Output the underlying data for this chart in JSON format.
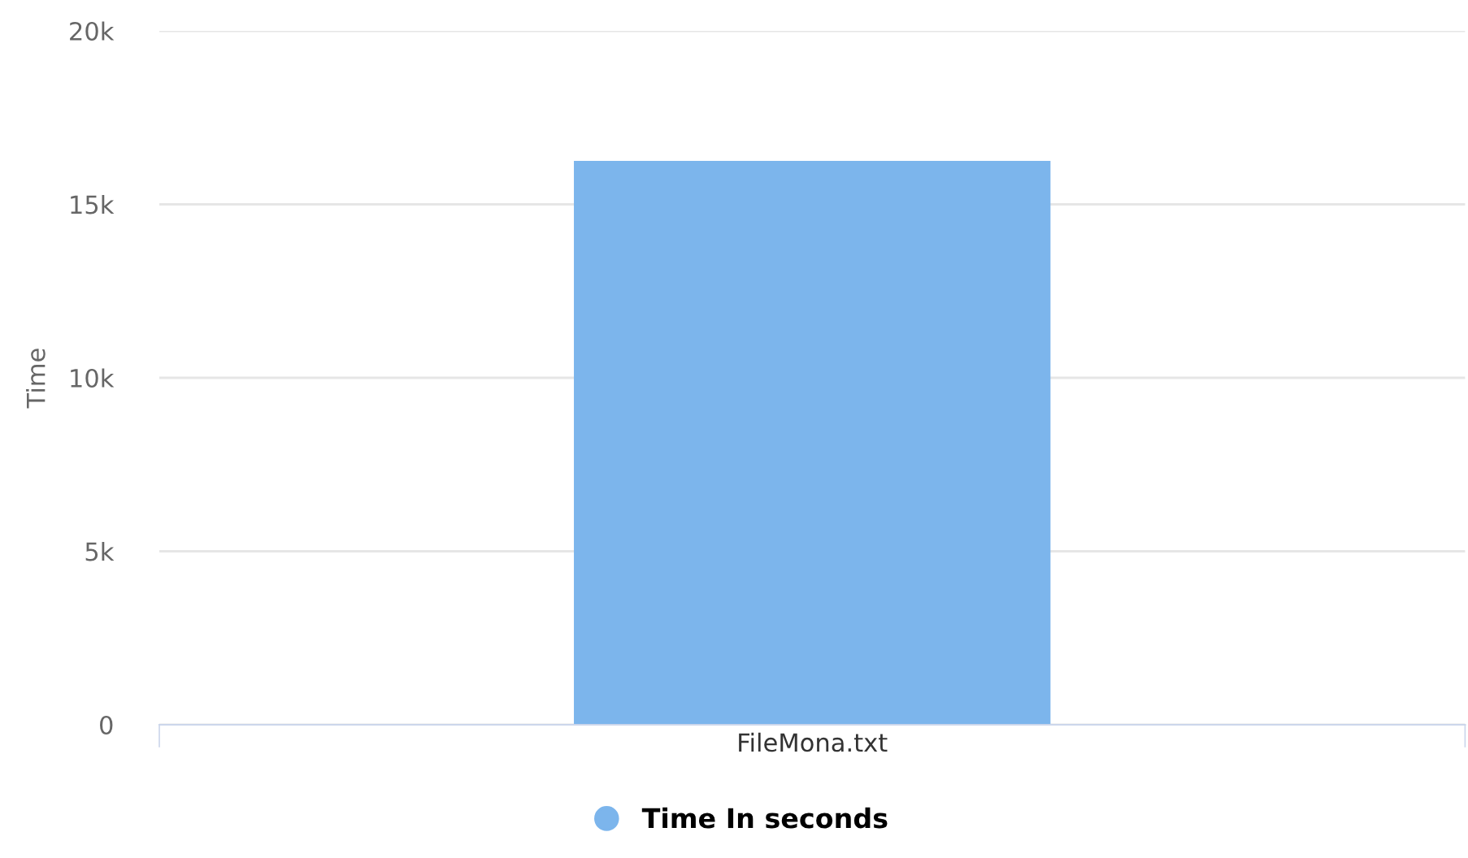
{
  "chart_data": {
    "type": "bar",
    "ylabel": "Time",
    "categories": [
      "FileMona.txt"
    ],
    "series": [
      {
        "name": "Time In seconds",
        "color": "#7cb5ec",
        "values": [
          16250
        ]
      }
    ],
    "ylim": [
      0,
      20000
    ],
    "yticks": [
      {
        "value": 0,
        "label": "0"
      },
      {
        "value": 5000,
        "label": "5k"
      },
      {
        "value": 10000,
        "label": "10k"
      },
      {
        "value": 15000,
        "label": "15k"
      },
      {
        "value": 20000,
        "label": "20k"
      }
    ],
    "grid": "y",
    "legend": "bottom"
  }
}
